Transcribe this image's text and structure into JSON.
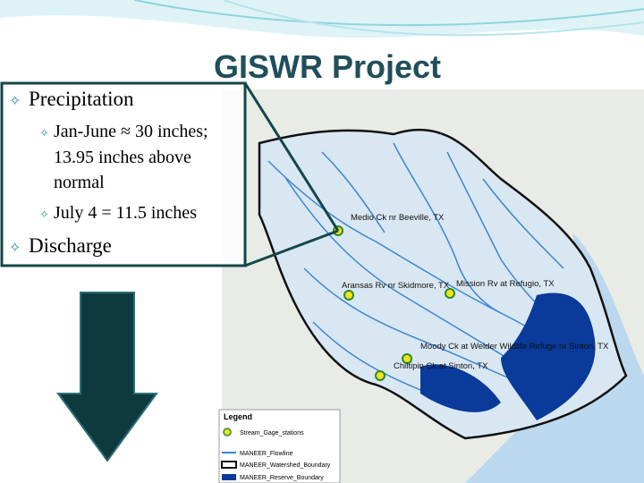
{
  "slide": {
    "title": "GISWR Project",
    "bullets": [
      {
        "text": "Precipitation",
        "subitems": [
          "Jan-June ≈ 30 inches; 13.95 inches above normal",
          "July 4 = 11.5 inches"
        ]
      },
      {
        "text": "Discharge",
        "subitems": []
      }
    ]
  },
  "map": {
    "stations": [
      "Medio Ck nr Beeville, TX",
      "Aransas Rv nr Skidmore, TX",
      "Mission Rv at Refugio, TX",
      "Moody Ck at Welder Wildlife Refuge nr Sinton, TX",
      "Chiltipin Ck at Sinton, TX"
    ],
    "legend": {
      "title": "Legend",
      "items": [
        "Stream_Gage_stations",
        "MANEER_Flowline",
        "MANEER_Watershed_Boundary",
        "MANEER_Reserve_Boundary"
      ]
    }
  }
}
